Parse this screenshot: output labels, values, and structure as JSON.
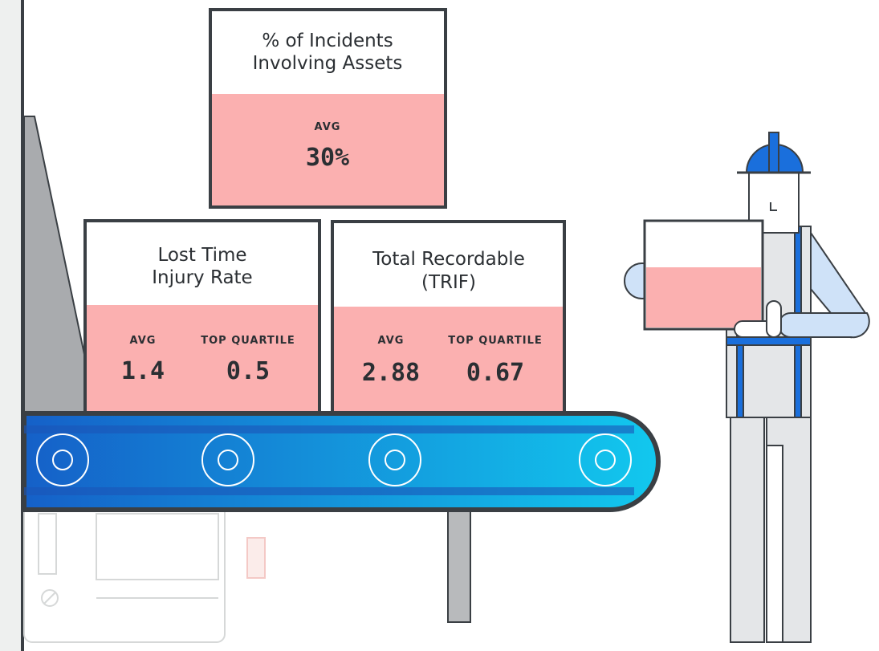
{
  "boxes": [
    {
      "title": [
        "% of Incidents",
        "Involving Assets"
      ],
      "stats": [
        {
          "label": "AVG",
          "value": "30%"
        }
      ]
    },
    {
      "title": [
        "Lost Time",
        "Injury Rate"
      ],
      "stats": [
        {
          "label": "AVG",
          "value": "1.4"
        },
        {
          "label": "TOP QUARTILE",
          "value": "0.5"
        }
      ]
    },
    {
      "title": [
        "Total Recordable",
        "(TRIF)"
      ],
      "stats": [
        {
          "label": "AVG",
          "value": "2.88"
        },
        {
          "label": "TOP QUARTILE",
          "value": "0.67"
        }
      ]
    }
  ]
}
